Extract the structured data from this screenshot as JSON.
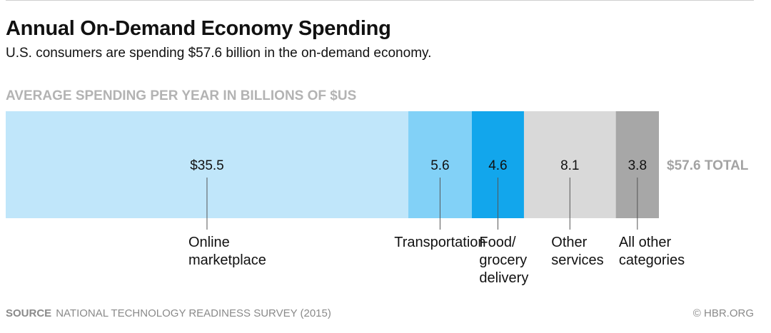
{
  "header": {
    "title": "Annual On-Demand Economy Spending",
    "subtitle": "U.S. consumers are spending $57.6 billion in the on-demand economy."
  },
  "chart_label": "AVERAGE SPENDING PER YEAR IN BILLIONS OF $US",
  "chart_data": {
    "type": "bar",
    "orientation": "horizontal-stacked",
    "title": "Annual On-Demand Economy Spending",
    "subtitle": "U.S. consumers are spending $57.6 billion in the on-demand economy.",
    "ylabel": "AVERAGE SPENDING PER YEAR IN BILLIONS OF $US",
    "total": 57.6,
    "total_label": "$57.6 TOTAL",
    "segments": [
      {
        "name": "Online marketplace",
        "label_lines": [
          "Online",
          "marketplace"
        ],
        "value": 35.5,
        "value_label": "$35.5",
        "color": "#c0e6fa"
      },
      {
        "name": "Transportation",
        "label_lines": [
          "Transportation"
        ],
        "value": 5.6,
        "value_label": "5.6",
        "color": "#82d1f7"
      },
      {
        "name": "Food/ grocery delivery",
        "label_lines": [
          "Food/",
          "grocery",
          "delivery"
        ],
        "value": 4.6,
        "value_label": "4.6",
        "color": "#12a6ec"
      },
      {
        "name": "Other services",
        "label_lines": [
          "Other",
          "services"
        ],
        "value": 8.1,
        "value_label": "8.1",
        "color": "#d9d9d9"
      },
      {
        "name": "All other categories",
        "label_lines": [
          "All other",
          "categories"
        ],
        "value": 3.8,
        "value_label": "3.8",
        "color": "#a7a7a7"
      }
    ],
    "colors": {
      "total_label": "#a3a3a3",
      "leader_line": "#555555"
    }
  },
  "footer": {
    "source_key": "SOURCE",
    "source_text": "NATIONAL TECHNOLOGY READINESS SURVEY (2015)",
    "credit": "© HBR.ORG"
  }
}
